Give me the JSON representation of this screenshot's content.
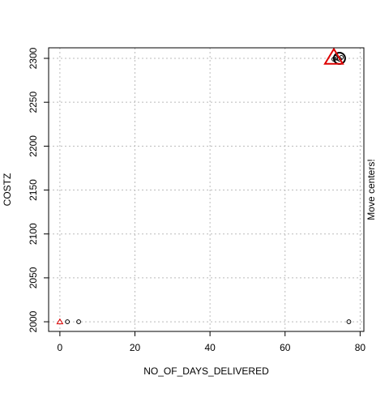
{
  "chart_data": {
    "type": "scatter",
    "title": "",
    "xlabel": "NO_OF_DAYS_DELIVERED",
    "ylabel": "COSTZ",
    "side_label": "Move centers!",
    "xlim": [
      -3,
      81
    ],
    "ylim": [
      1989,
      2312
    ],
    "x_ticks": [
      0,
      20,
      40,
      60,
      80
    ],
    "y_ticks": [
      2000,
      2050,
      2100,
      2150,
      2200,
      2250,
      2300
    ],
    "x_tick_labels": [
      "0",
      "20",
      "40",
      "60",
      "80"
    ],
    "y_tick_labels": [
      "2000",
      "2050",
      "2100",
      "2150",
      "2200",
      "2250",
      "2300"
    ],
    "grid": true,
    "colors": {
      "points": "#000000",
      "centers": "#dd0000",
      "grid": "#bbbbbb"
    },
    "points": [
      {
        "x": 2,
        "y": 2000
      },
      {
        "x": 5,
        "y": 2000
      },
      {
        "x": 77,
        "y": 2000
      },
      {
        "x": 74,
        "y": 2300
      },
      {
        "x": 75,
        "y": 2301
      },
      {
        "x": 73,
        "y": 2299
      },
      {
        "x": 74.5,
        "y": 2299
      },
      {
        "x": 73.5,
        "y": 2301
      }
    ],
    "big_circle": {
      "x": 74.5,
      "y": 2300
    },
    "centers": [
      {
        "x": 0,
        "y": 2000,
        "size": "small"
      },
      {
        "x": 73,
        "y": 2301,
        "size": "large"
      }
    ]
  }
}
